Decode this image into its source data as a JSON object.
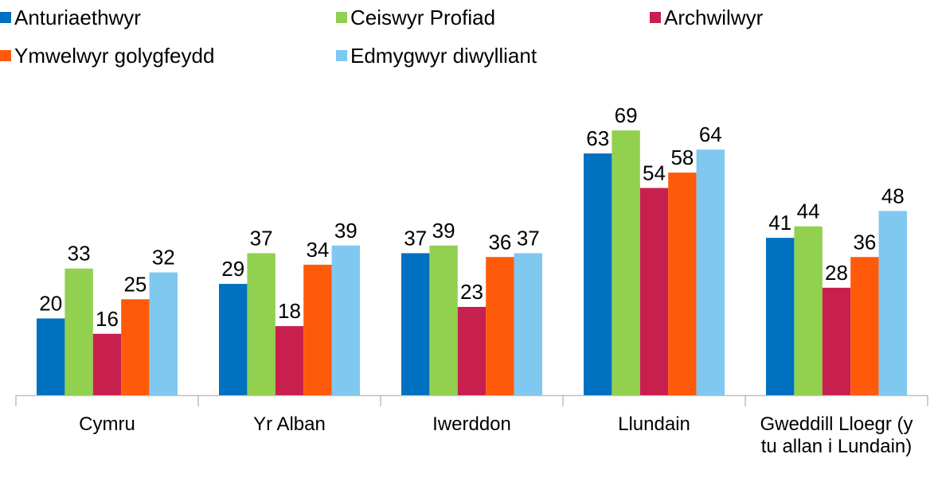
{
  "chart_data": {
    "type": "bar",
    "categories": [
      "Cymru",
      "Yr Alban",
      "Iwerddon",
      "Llundain",
      "Gweddill Lloegr (y tu allan i Lundain)"
    ],
    "series": [
      {
        "name": "Anturiaethwyr",
        "color": "#0070c0",
        "values": [
          20,
          29,
          37,
          63,
          41
        ]
      },
      {
        "name": "Ceiswyr Profiad",
        "color": "#92d050",
        "values": [
          33,
          37,
          39,
          69,
          44
        ]
      },
      {
        "name": "Archwilwyr",
        "color": "#c8204e",
        "values": [
          16,
          18,
          23,
          54,
          28
        ]
      },
      {
        "name": "Ymwelwyr golygfeydd",
        "color": "#ff5a0a",
        "values": [
          25,
          34,
          36,
          58,
          36
        ]
      },
      {
        "name": "Edmygwyr diwylliant",
        "color": "#7fc8f0",
        "values": [
          32,
          39,
          37,
          64,
          48
        ]
      }
    ]
  }
}
